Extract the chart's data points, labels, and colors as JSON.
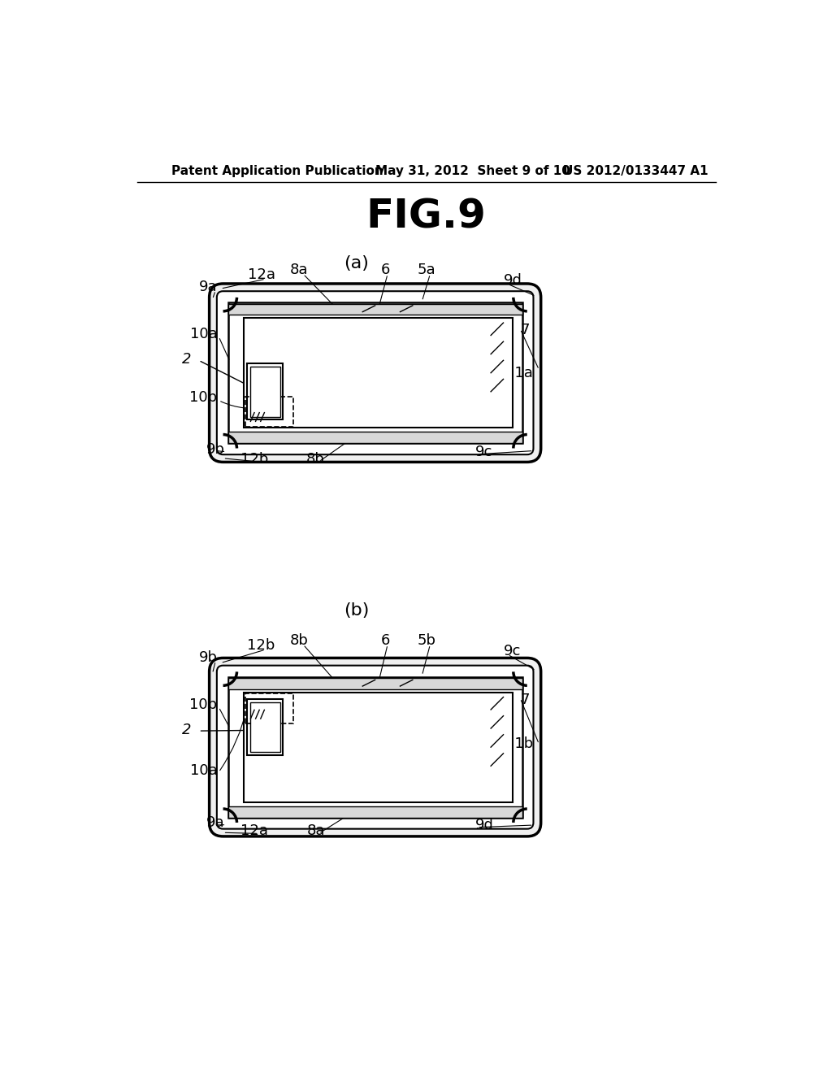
{
  "bg_color": "#ffffff",
  "header_left": "Patent Application Publication",
  "header_center": "May 31, 2012  Sheet 9 of 10",
  "header_right": "US 2012/0133447 A1",
  "fig_title": "FIG.9",
  "sub_a": "(a)",
  "sub_b": "(b)"
}
